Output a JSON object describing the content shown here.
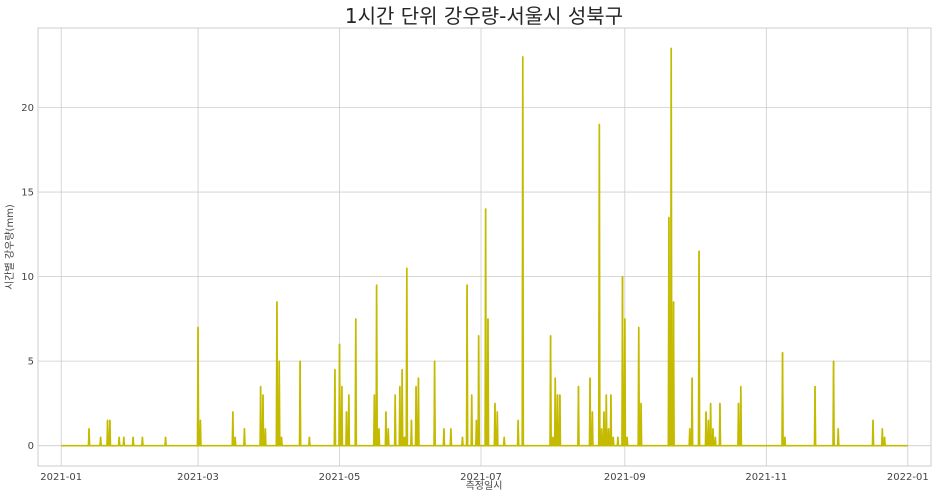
{
  "chart_data": {
    "type": "line",
    "title": "1시간 단위 강우량-서울시 성북구",
    "xlabel": "측정일시",
    "ylabel": "시간별 강우량(mm)",
    "color": "#c4bb00",
    "grid": true,
    "x_range": [
      "2020-12-22",
      "2022-01-11"
    ],
    "ylim": [
      -1.2,
      24.7
    ],
    "x_ticks": [
      "2021-01",
      "2021-03",
      "2021-05",
      "2021-07",
      "2021-09",
      "2021-11",
      "2022-01"
    ],
    "y_ticks": [
      0,
      5,
      10,
      15,
      20
    ],
    "series": [
      {
        "points": [
          [
            "2021-01-01",
            0
          ],
          [
            "2021-01-13",
            1.0
          ],
          [
            "2021-01-18",
            0.5
          ],
          [
            "2021-01-21",
            1.5
          ],
          [
            "2021-01-22",
            1.5
          ],
          [
            "2021-01-26",
            0.5
          ],
          [
            "2021-01-28",
            0.5
          ],
          [
            "2021-02-01",
            0.5
          ],
          [
            "2021-02-05",
            0.5
          ],
          [
            "2021-02-15",
            0.5
          ],
          [
            "2021-03-01",
            7.0
          ],
          [
            "2021-03-02",
            1.5
          ],
          [
            "2021-03-16",
            2.0
          ],
          [
            "2021-03-17",
            0.5
          ],
          [
            "2021-03-21",
            1.0
          ],
          [
            "2021-03-28",
            3.5
          ],
          [
            "2021-03-29",
            3.0
          ],
          [
            "2021-03-30",
            1.0
          ],
          [
            "2021-04-04",
            8.5
          ],
          [
            "2021-04-05",
            5.0
          ],
          [
            "2021-04-06",
            0.5
          ],
          [
            "2021-04-14",
            5.0
          ],
          [
            "2021-04-18",
            0.5
          ],
          [
            "2021-04-29",
            4.5
          ],
          [
            "2021-05-01",
            6.0
          ],
          [
            "2021-05-02",
            3.5
          ],
          [
            "2021-05-04",
            2.0
          ],
          [
            "2021-05-05",
            3.0
          ],
          [
            "2021-05-08",
            7.5
          ],
          [
            "2021-05-16",
            3.0
          ],
          [
            "2021-05-17",
            9.5
          ],
          [
            "2021-05-18",
            1.0
          ],
          [
            "2021-05-21",
            2.0
          ],
          [
            "2021-05-22",
            1.0
          ],
          [
            "2021-05-25",
            3.0
          ],
          [
            "2021-05-27",
            3.5
          ],
          [
            "2021-05-28",
            4.5
          ],
          [
            "2021-05-29",
            0.5
          ],
          [
            "2021-05-30",
            10.5
          ],
          [
            "2021-06-01",
            1.5
          ],
          [
            "2021-06-03",
            3.5
          ],
          [
            "2021-06-04",
            4.0
          ],
          [
            "2021-06-11",
            5.0
          ],
          [
            "2021-06-15",
            1.0
          ],
          [
            "2021-06-18",
            1.0
          ],
          [
            "2021-06-23",
            0.5
          ],
          [
            "2021-06-25",
            9.5
          ],
          [
            "2021-06-27",
            3.0
          ],
          [
            "2021-06-29",
            1.5
          ],
          [
            "2021-06-30",
            6.5
          ],
          [
            "2021-07-03",
            14.0
          ],
          [
            "2021-07-04",
            7.5
          ],
          [
            "2021-07-07",
            2.5
          ],
          [
            "2021-07-08",
            2.0
          ],
          [
            "2021-07-11",
            0.5
          ],
          [
            "2021-07-17",
            1.5
          ],
          [
            "2021-07-19",
            23.0
          ],
          [
            "2021-07-31",
            6.5
          ],
          [
            "2021-08-01",
            0.5
          ],
          [
            "2021-08-02",
            4.0
          ],
          [
            "2021-08-03",
            3.0
          ],
          [
            "2021-08-04",
            3.0
          ],
          [
            "2021-08-12",
            3.5
          ],
          [
            "2021-08-17",
            4.0
          ],
          [
            "2021-08-18",
            2.0
          ],
          [
            "2021-08-21",
            19.0
          ],
          [
            "2021-08-22",
            1.0
          ],
          [
            "2021-08-23",
            2.0
          ],
          [
            "2021-08-24",
            3.0
          ],
          [
            "2021-08-25",
            1.0
          ],
          [
            "2021-08-26",
            3.0
          ],
          [
            "2021-08-27",
            0.5
          ],
          [
            "2021-08-29",
            0.5
          ],
          [
            "2021-08-31",
            10.0
          ],
          [
            "2021-09-01",
            7.5
          ],
          [
            "2021-09-02",
            0.5
          ],
          [
            "2021-09-07",
            7.0
          ],
          [
            "2021-09-08",
            2.5
          ],
          [
            "2021-09-20",
            13.5
          ],
          [
            "2021-09-21",
            23.5
          ],
          [
            "2021-09-22",
            8.5
          ],
          [
            "2021-09-29",
            1.0
          ],
          [
            "2021-09-30",
            4.0
          ],
          [
            "2021-10-03",
            11.5
          ],
          [
            "2021-10-06",
            2.0
          ],
          [
            "2021-10-07",
            1.5
          ],
          [
            "2021-10-08",
            2.5
          ],
          [
            "2021-10-09",
            1.0
          ],
          [
            "2021-10-10",
            0.5
          ],
          [
            "2021-10-12",
            2.5
          ],
          [
            "2021-10-20",
            2.5
          ],
          [
            "2021-10-21",
            3.5
          ],
          [
            "2021-11-08",
            5.5
          ],
          [
            "2021-11-09",
            0.5
          ],
          [
            "2021-11-22",
            3.5
          ],
          [
            "2021-11-30",
            5.0
          ],
          [
            "2021-12-02",
            1.0
          ],
          [
            "2021-12-17",
            1.5
          ],
          [
            "2021-12-21",
            1.0
          ],
          [
            "2021-12-22",
            0.5
          ],
          [
            "2022-01-01",
            0
          ]
        ]
      }
    ]
  }
}
